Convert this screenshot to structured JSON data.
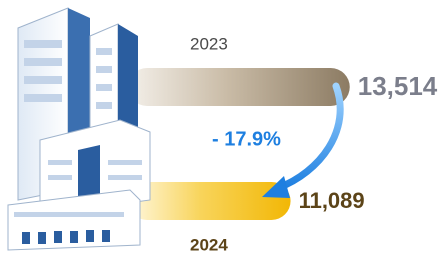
{
  "chart_data": {
    "type": "bar",
    "categories": [
      "2023",
      "2024"
    ],
    "values": [
      13514,
      11089
    ],
    "value_labels": [
      "13,514",
      "11,089"
    ],
    "colors": [
      "#8c7b63",
      "#f2b705"
    ],
    "annotation": "- 17.9%"
  }
}
